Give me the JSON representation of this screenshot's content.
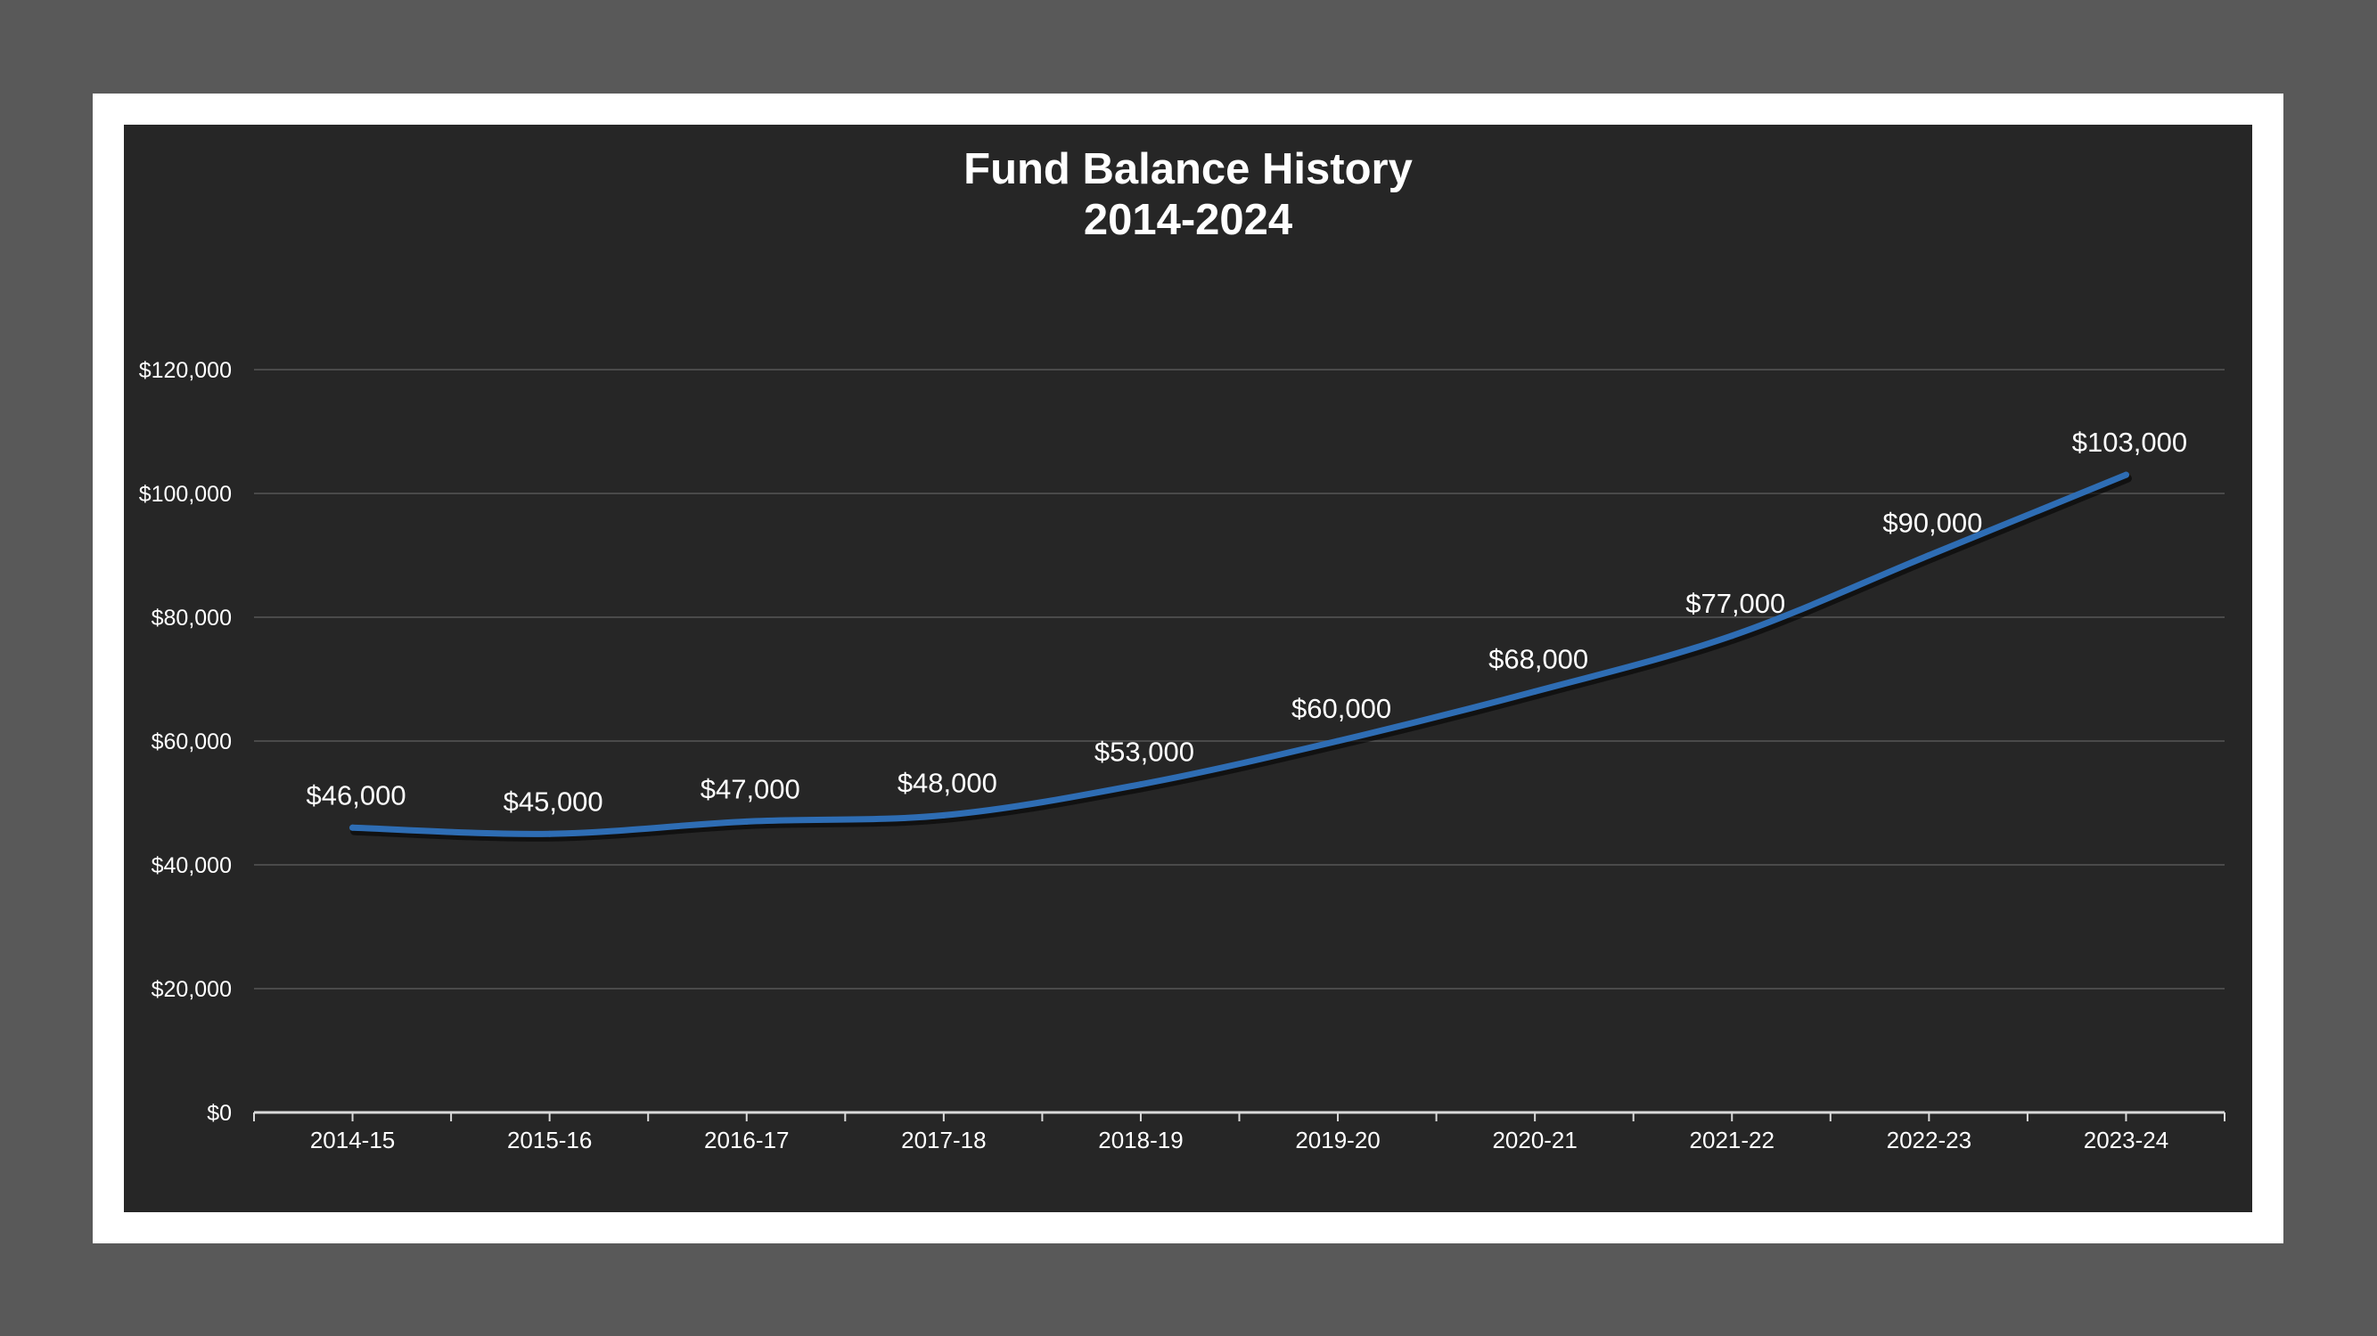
{
  "chart_data": {
    "type": "line",
    "title": "Fund Balance History",
    "subtitle": "2014-2024",
    "xlabel": "",
    "ylabel": "",
    "categories": [
      "2014-15",
      "2015-16",
      "2016-17",
      "2017-18",
      "2018-19",
      "2019-20",
      "2020-21",
      "2021-22",
      "2022-23",
      "2023-24"
    ],
    "series": [
      {
        "values": [
          46000,
          45000,
          47000,
          48000,
          53000,
          60000,
          68000,
          77000,
          90000,
          103000
        ],
        "data_labels": [
          "$46,000",
          "$45,000",
          "$47,000",
          "$48,000",
          "$53,000",
          "$60,000",
          "$68,000",
          "$77,000",
          "$90,000",
          "$103,000"
        ],
        "color": "#2E6DB4"
      }
    ],
    "ylim": [
      0,
      120000
    ],
    "yticks": [
      0,
      20000,
      40000,
      60000,
      80000,
      100000,
      120000
    ],
    "ytick_labels": [
      "$0",
      "$20,000",
      "$40,000",
      "$60,000",
      "$80,000",
      "$100,000",
      "$120,000"
    ],
    "grid": true,
    "legend": "none"
  },
  "colors": {
    "page_background": "#595959",
    "frame": "#ffffff",
    "chart_background": "#262626",
    "gridline": "#4a4a4a",
    "axis": "#d9d9d9",
    "text": "#ffffff",
    "line": "#2E6DB4"
  }
}
